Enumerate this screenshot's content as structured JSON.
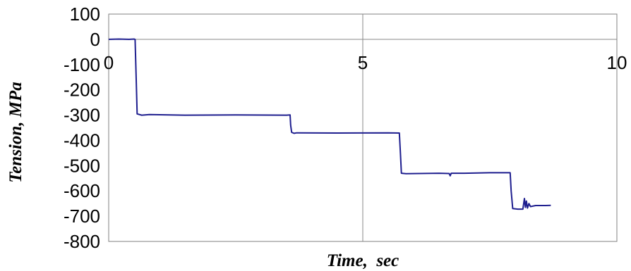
{
  "chart_data": {
    "type": "line",
    "title": "",
    "xlabel": "Time,  sec",
    "ylabel": "Tension, MPa",
    "xlim": [
      0,
      10
    ],
    "ylim": [
      -800,
      100
    ],
    "x_ticks": [
      "0",
      "5",
      "10"
    ],
    "y_ticks": [
      "100",
      "0",
      "-100",
      "-200",
      "-300",
      "-400",
      "-500",
      "-600",
      "-700",
      "-800"
    ],
    "grid": true,
    "legend": "none",
    "series": [
      {
        "color": "#1f1f8f",
        "points": [
          [
            0.0,
            0
          ],
          [
            0.2,
            1
          ],
          [
            0.4,
            0
          ],
          [
            0.5,
            1
          ],
          [
            0.52,
            0
          ],
          [
            0.54,
            -150
          ],
          [
            0.56,
            -295
          ],
          [
            0.65,
            -300
          ],
          [
            0.8,
            -298
          ],
          [
            1.5,
            -300
          ],
          [
            2.5,
            -299
          ],
          [
            3.5,
            -300
          ],
          [
            3.57,
            -299
          ],
          [
            3.58,
            -340
          ],
          [
            3.6,
            -368
          ],
          [
            3.65,
            -372
          ],
          [
            3.7,
            -370
          ],
          [
            4.5,
            -371
          ],
          [
            5.5,
            -370
          ],
          [
            5.72,
            -371
          ],
          [
            5.74,
            -450
          ],
          [
            5.76,
            -530
          ],
          [
            5.85,
            -532
          ],
          [
            6.5,
            -530
          ],
          [
            6.7,
            -531
          ],
          [
            6.72,
            -540
          ],
          [
            6.74,
            -530
          ],
          [
            7.0,
            -530
          ],
          [
            7.5,
            -528
          ],
          [
            7.9,
            -528
          ],
          [
            7.92,
            -600
          ],
          [
            7.95,
            -670
          ],
          [
            8.05,
            -672
          ],
          [
            8.15,
            -672
          ],
          [
            8.18,
            -630
          ],
          [
            8.2,
            -665
          ],
          [
            8.22,
            -640
          ],
          [
            8.24,
            -668
          ],
          [
            8.27,
            -650
          ],
          [
            8.3,
            -662
          ],
          [
            8.4,
            -658
          ],
          [
            8.6,
            -658
          ],
          [
            8.7,
            -657
          ]
        ]
      }
    ]
  }
}
